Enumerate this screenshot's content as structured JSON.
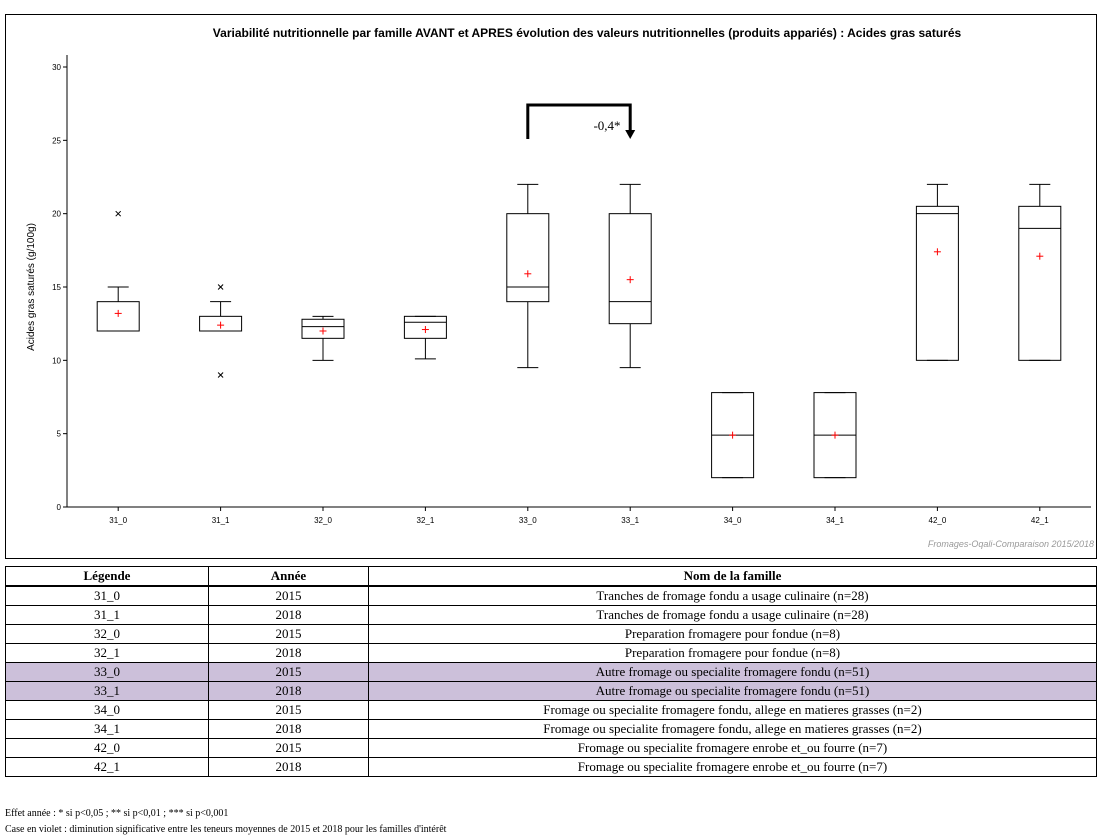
{
  "chart_data": {
    "type": "box",
    "title": "Variabilité nutritionnelle par famille AVANT et APRES évolution des valeurs nutritionnelles (produits appariés) : Acides gras saturés",
    "ylabel": "Acides gras saturés (g/100g)",
    "xlabel": "",
    "ylim": [
      0,
      30
    ],
    "yticks": [
      0,
      5,
      10,
      15,
      20,
      25,
      30
    ],
    "categories": [
      "31_0",
      "31_1",
      "32_0",
      "32_1",
      "33_0",
      "33_1",
      "34_0",
      "34_1",
      "42_0",
      "42_1"
    ],
    "boxes": [
      {
        "min": 12,
        "q1": 12,
        "median": 12,
        "q3": 14,
        "max": 15,
        "mean": 13.2,
        "outliers": [
          20
        ]
      },
      {
        "min": 12,
        "q1": 12,
        "median": 12,
        "q3": 13,
        "max": 14,
        "mean": 12.4,
        "outliers": [
          15,
          9
        ]
      },
      {
        "min": 10,
        "q1": 11.5,
        "median": 12.3,
        "q3": 12.8,
        "max": 13,
        "mean": 12.0,
        "outliers": []
      },
      {
        "min": 10.1,
        "q1": 11.5,
        "median": 12.6,
        "q3": 13,
        "max": 13,
        "mean": 12.1,
        "outliers": []
      },
      {
        "min": 9.5,
        "q1": 14,
        "median": 15,
        "q3": 20,
        "max": 22,
        "mean": 15.9,
        "outliers": []
      },
      {
        "min": 9.5,
        "q1": 12.5,
        "median": 14,
        "q3": 20,
        "max": 22,
        "mean": 15.5,
        "outliers": []
      },
      {
        "min": 2,
        "q1": 2,
        "median": 4.9,
        "q3": 7.8,
        "max": 7.8,
        "mean": 4.9,
        "outliers": []
      },
      {
        "min": 2,
        "q1": 2,
        "median": 4.9,
        "q3": 7.8,
        "max": 7.8,
        "mean": 4.9,
        "outliers": []
      },
      {
        "min": 10,
        "q1": 10,
        "median": 20,
        "q3": 20.5,
        "max": 22,
        "mean": 17.4,
        "outliers": []
      },
      {
        "min": 10,
        "q1": 10,
        "median": 19,
        "q3": 20.5,
        "max": 22,
        "mean": 17.1,
        "outliers": []
      }
    ],
    "annotation": {
      "from": "33_0",
      "to": "33_1",
      "label": "-0,4*"
    },
    "source": "Fromages-Oqali-Comparaison 2015/2018"
  },
  "table": {
    "headers": [
      "Légende",
      "Année",
      "Nom de la famille"
    ],
    "rows": [
      {
        "code": "31_0",
        "year": "2015",
        "name": "Tranches de fromage fondu a usage culinaire (n=28)",
        "highlight": false
      },
      {
        "code": "31_1",
        "year": "2018",
        "name": "Tranches de fromage fondu a usage culinaire (n=28)",
        "highlight": false
      },
      {
        "code": "32_0",
        "year": "2015",
        "name": "Preparation fromagere pour fondue (n=8)",
        "highlight": false
      },
      {
        "code": "32_1",
        "year": "2018",
        "name": "Preparation fromagere pour fondue (n=8)",
        "highlight": false
      },
      {
        "code": "33_0",
        "year": "2015",
        "name": "Autre fromage ou specialite fromagere fondu (n=51)",
        "highlight": true
      },
      {
        "code": "33_1",
        "year": "2018",
        "name": "Autre fromage ou specialite fromagere fondu (n=51)",
        "highlight": true
      },
      {
        "code": "34_0",
        "year": "2015",
        "name": "Fromage ou specialite fromagere fondu, allege en matieres grasses (n=2)",
        "highlight": false
      },
      {
        "code": "34_1",
        "year": "2018",
        "name": "Fromage ou specialite fromagere fondu, allege en matieres grasses (n=2)",
        "highlight": false
      },
      {
        "code": "42_0",
        "year": "2015",
        "name": "Fromage ou specialite fromagere enrobe et_ou fourre (n=7)",
        "highlight": false
      },
      {
        "code": "42_1",
        "year": "2018",
        "name": "Fromage ou specialite fromagere enrobe et_ou fourre (n=7)",
        "highlight": false
      }
    ]
  },
  "notes": {
    "significance": "Effet année : * si p<0,05 ; ** si p<0,01 ; *** si p<0,001",
    "highlight": "Case en violet : diminution significative entre les teneurs moyennes de 2015 et 2018 pour les familles d'intérêt"
  },
  "colors": {
    "mean_marker": "#ff0000",
    "highlight_row": "#ccc0da",
    "source_text": "#999999"
  }
}
